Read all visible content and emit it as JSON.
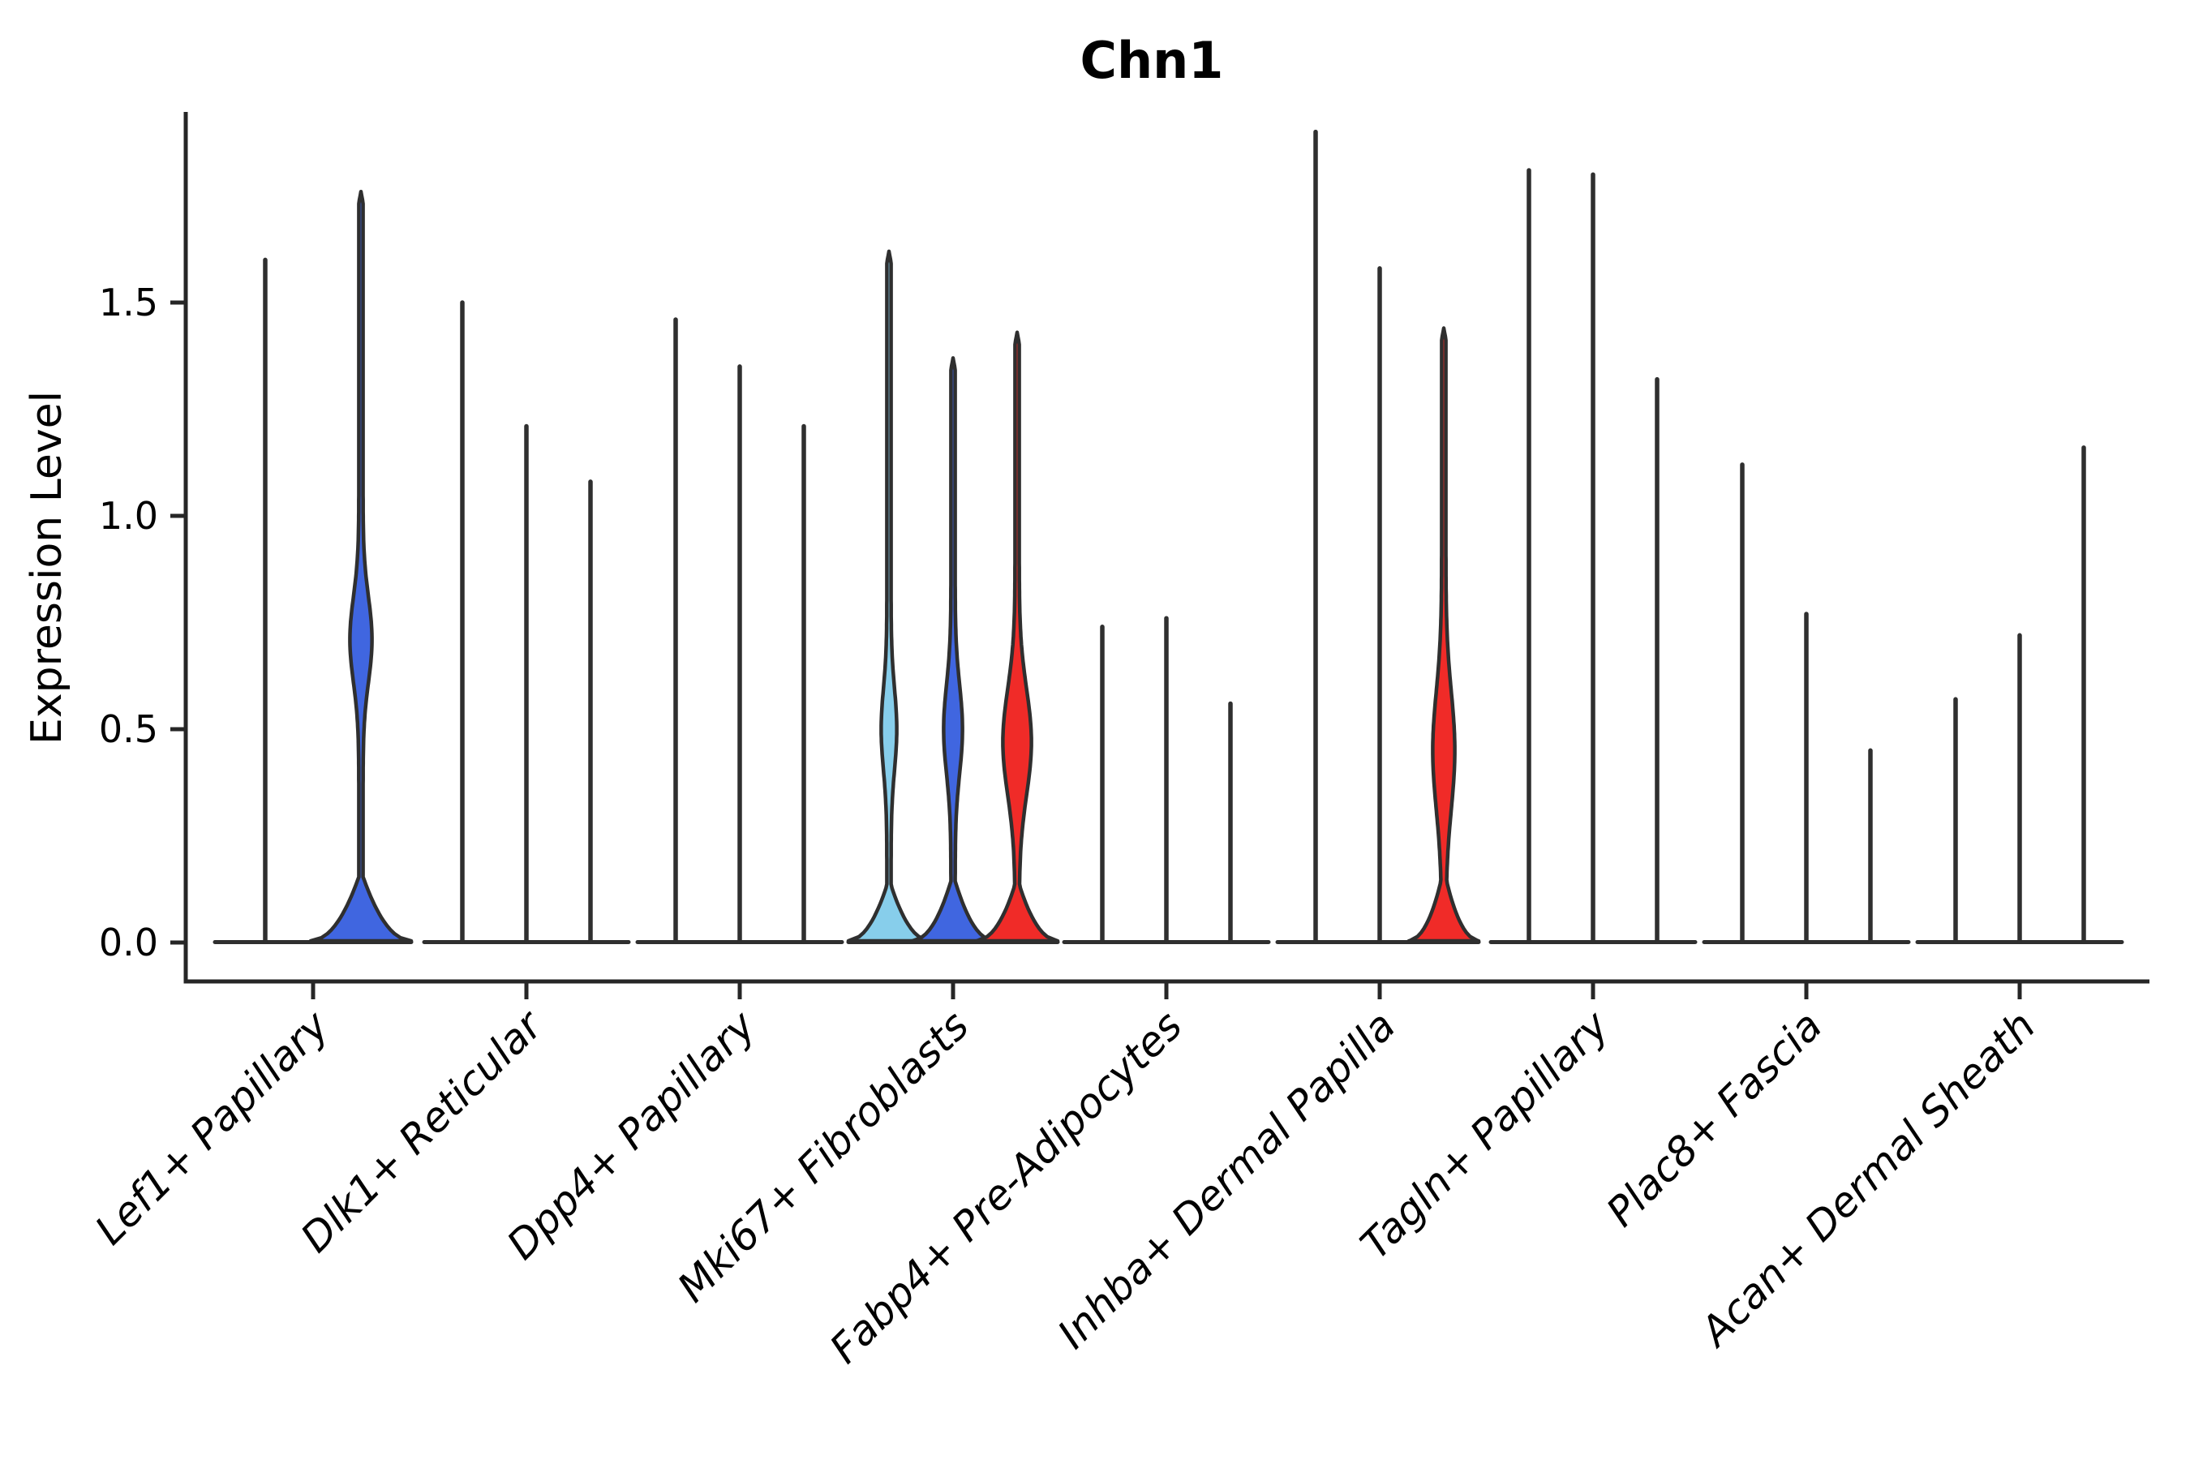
{
  "chart_data": {
    "type": "violin",
    "title": "Chn1",
    "xlabel": "",
    "ylabel": "Expression Level",
    "y_tick_labels": [
      "0.0",
      "0.5",
      "1.0",
      "1.5"
    ],
    "y_tick_values": [
      0.0,
      0.5,
      1.0,
      1.5
    ],
    "ylim": [
      -0.09,
      1.95
    ],
    "grid": false,
    "legend": "none",
    "stroke_color": "#2f2f2f",
    "palette": [
      "#87CEEB",
      "#4066E0",
      "#F02B28"
    ],
    "categories": [
      "Lef1+ Papillary",
      "Dlk1+ Reticular",
      "Dpp4+ Papillary",
      "Mki67+ Fibroblasts",
      "Fabp4+ Pre-Adipocytes",
      "Inhba+ Dermal Papilla",
      "Tagln+ Papillary",
      "Plac8+ Fascia",
      "Acan+ Dermal Sheath"
    ],
    "groups": [
      {
        "label": "Lef1+ Papillary",
        "violins": [
          {
            "style": "spike",
            "color_index": 0,
            "max": 1.6
          },
          {
            "style": "filled",
            "color_index": 1,
            "max": 1.76,
            "bulge": {
              "center": 0.71,
              "span": 0.21,
              "halfwidth": 11
            },
            "mound": {
              "halfwidth": 62,
              "height": 0.15
            }
          }
        ]
      },
      {
        "label": "Dlk1+ Reticular",
        "violins": [
          {
            "style": "spike",
            "color_index": 0,
            "max": 1.5
          },
          {
            "style": "spike",
            "color_index": 1,
            "max": 1.21
          },
          {
            "style": "spike",
            "color_index": 2,
            "max": 1.08
          }
        ]
      },
      {
        "label": "Dpp4+ Papillary",
        "violins": [
          {
            "style": "spike",
            "color_index": 0,
            "max": 1.46
          },
          {
            "style": "spike",
            "color_index": 1,
            "max": 1.35
          },
          {
            "style": "spike",
            "color_index": 2,
            "max": 1.21
          }
        ]
      },
      {
        "label": "Mki67+ Fibroblasts",
        "violins": [
          {
            "style": "filled",
            "color_index": 0,
            "max": 1.62,
            "bulge": {
              "center": 0.5,
              "span": 0.2,
              "halfwidth": 7
            },
            "mound": {
              "halfwidth": 50,
              "height": 0.13
            }
          },
          {
            "style": "filled",
            "color_index": 1,
            "max": 1.37,
            "bulge": {
              "center": 0.5,
              "span": 0.22,
              "halfwidth": 9
            },
            "mound": {
              "halfwidth": 50,
              "height": 0.14
            }
          },
          {
            "style": "filled",
            "color_index": 2,
            "max": 1.43,
            "bulge": {
              "center": 0.47,
              "span": 0.26,
              "halfwidth": 15
            },
            "mound": {
              "halfwidth": 50,
              "height": 0.13
            }
          }
        ]
      },
      {
        "label": "Fabp4+ Pre-Adipocytes",
        "violins": [
          {
            "style": "spike",
            "color_index": 0,
            "max": 0.74
          },
          {
            "style": "spike",
            "color_index": 1,
            "max": 0.76
          },
          {
            "style": "spike",
            "color_index": 2,
            "max": 0.56
          }
        ]
      },
      {
        "label": "Inhba+ Dermal Papilla",
        "violins": [
          {
            "style": "spike",
            "color_index": 0,
            "max": 1.9
          },
          {
            "style": "spike",
            "color_index": 1,
            "max": 1.58
          },
          {
            "style": "filled",
            "color_index": 2,
            "max": 1.44,
            "bulge": {
              "center": 0.45,
              "span": 0.29,
              "halfwidth": 11
            },
            "mound": {
              "halfwidth": 43,
              "height": 0.14
            }
          }
        ]
      },
      {
        "label": "Tagln+ Papillary",
        "violins": [
          {
            "style": "spike",
            "color_index": 0,
            "max": 1.81
          },
          {
            "style": "spike",
            "color_index": 1,
            "max": 1.8
          },
          {
            "style": "spike",
            "color_index": 2,
            "max": 1.32
          }
        ]
      },
      {
        "label": "Plac8+ Fascia",
        "violins": [
          {
            "style": "spike",
            "color_index": 0,
            "max": 1.12
          },
          {
            "style": "spike",
            "color_index": 1,
            "max": 0.77
          },
          {
            "style": "spike",
            "color_index": 2,
            "max": 0.45
          }
        ]
      },
      {
        "label": "Acan+ Dermal Sheath",
        "violins": [
          {
            "style": "spike",
            "color_index": 0,
            "max": 0.57
          },
          {
            "style": "spike",
            "color_index": 1,
            "max": 0.72
          },
          {
            "style": "spike",
            "color_index": 2,
            "max": 1.16
          }
        ]
      }
    ]
  }
}
